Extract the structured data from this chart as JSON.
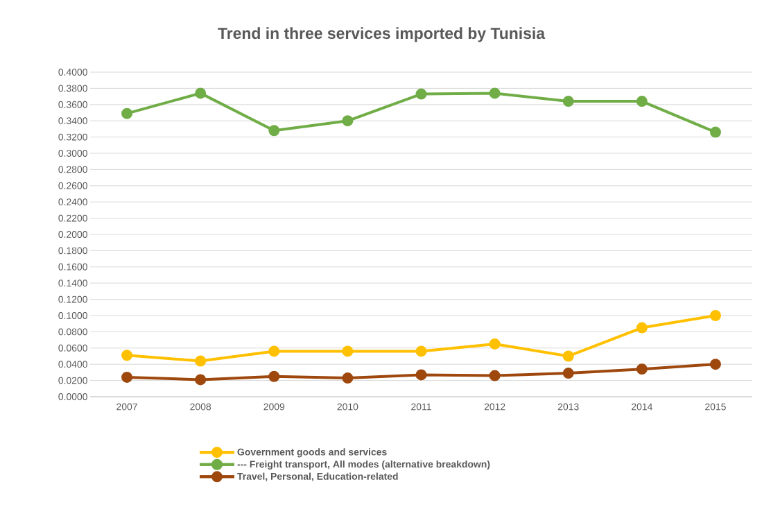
{
  "chart_data": {
    "type": "line",
    "title": "Trend in three services imported by Tunisia",
    "categories": [
      "2007",
      "2008",
      "2009",
      "2010",
      "2011",
      "2012",
      "2013",
      "2014",
      "2015"
    ],
    "series": [
      {
        "name": "Government goods and services",
        "color": "#ffc000",
        "values": [
          0.051,
          0.044,
          0.056,
          0.056,
          0.056,
          0.065,
          0.05,
          0.085,
          0.1
        ]
      },
      {
        "name": "--- Freight transport, All modes (alternative breakdown)",
        "color": "#70ad47",
        "values": [
          0.349,
          0.374,
          0.328,
          0.34,
          0.373,
          0.374,
          0.364,
          0.364,
          0.326
        ]
      },
      {
        "name": "Travel, Personal, Education-related",
        "color": "#9e480e",
        "values": [
          0.024,
          0.021,
          0.025,
          0.023,
          0.027,
          0.026,
          0.029,
          0.034,
          0.04
        ]
      }
    ],
    "ylim": [
      0,
      0.4
    ],
    "yticks": [
      {
        "value": 0,
        "label": "0.0000"
      },
      {
        "value": 0.02,
        "label": "0.0200"
      },
      {
        "value": 0.04,
        "label": "0.0400"
      },
      {
        "value": 0.06,
        "label": "0.0600"
      },
      {
        "value": 0.08,
        "label": "0.0800"
      },
      {
        "value": 0.1,
        "label": "0.1000"
      },
      {
        "value": 0.12,
        "label": "0.1200"
      },
      {
        "value": 0.14,
        "label": "0.1400"
      },
      {
        "value": 0.16,
        "label": "0.1600"
      },
      {
        "value": 0.18,
        "label": "0.1800"
      },
      {
        "value": 0.2,
        "label": "0.2000"
      },
      {
        "value": 0.22,
        "label": "0.2200"
      },
      {
        "value": 0.24,
        "label": "0.2400"
      },
      {
        "value": 0.26,
        "label": "0.2600"
      },
      {
        "value": 0.28,
        "label": "0.2800"
      },
      {
        "value": 0.3,
        "label": "0.3000"
      },
      {
        "value": 0.32,
        "label": "0.3200"
      },
      {
        "value": 0.34,
        "label": "0.3400"
      },
      {
        "value": 0.36,
        "label": "0.3600"
      },
      {
        "value": 0.38,
        "label": "0.3800"
      },
      {
        "value": 0.4,
        "label": "0.4000"
      }
    ],
    "grid": "y",
    "legend": "bottom",
    "marker": "circle",
    "line_style": "solid"
  }
}
